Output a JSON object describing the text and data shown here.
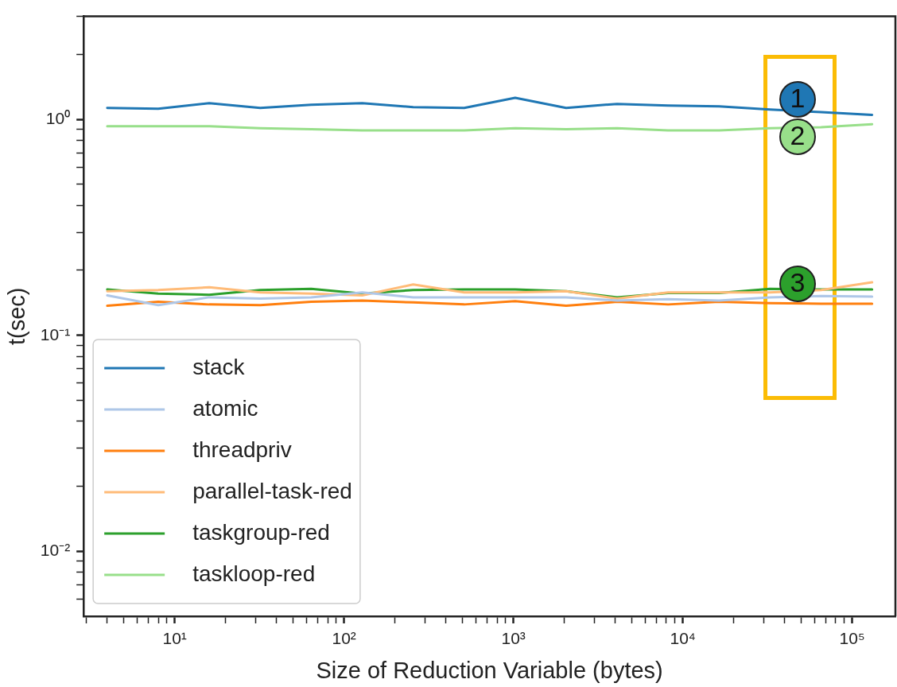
{
  "chart_data": {
    "type": "line",
    "xlabel": "Size of Reduction Variable (bytes)",
    "ylabel": "t(sec)",
    "log": "xy",
    "grid": false,
    "legend": "bottom left",
    "marker": "none",
    "line_style": "solid",
    "x": [
      4,
      8,
      16,
      32,
      64,
      128,
      256,
      512,
      1024,
      2048,
      4096,
      8192,
      16384,
      32768,
      65536,
      131072
    ],
    "xlim": [
      2.9,
      180000
    ],
    "ylim": [
      0.005,
      3
    ],
    "xticks": [
      {
        "value": 3,
        "label": null
      },
      {
        "value": 4,
        "label": null
      },
      {
        "value": 5,
        "label": null
      },
      {
        "value": 6,
        "label": null
      },
      {
        "value": 7,
        "label": null
      },
      {
        "value": 8,
        "label": null
      },
      {
        "value": 9,
        "label": null
      },
      {
        "value": 10,
        "label": "10¹"
      },
      {
        "value": 20,
        "label": null
      },
      {
        "value": 30,
        "label": null
      },
      {
        "value": 40,
        "label": null
      },
      {
        "value": 50,
        "label": null
      },
      {
        "value": 60,
        "label": null
      },
      {
        "value": 70,
        "label": null
      },
      {
        "value": 80,
        "label": null
      },
      {
        "value": 90,
        "label": null
      },
      {
        "value": 100,
        "label": "10²"
      },
      {
        "value": 200,
        "label": null
      },
      {
        "value": 300,
        "label": null
      },
      {
        "value": 400,
        "label": null
      },
      {
        "value": 500,
        "label": null
      },
      {
        "value": 600,
        "label": null
      },
      {
        "value": 700,
        "label": null
      },
      {
        "value": 800,
        "label": null
      },
      {
        "value": 900,
        "label": null
      },
      {
        "value": 1000,
        "label": "10³"
      },
      {
        "value": 2000,
        "label": null
      },
      {
        "value": 3000,
        "label": null
      },
      {
        "value": 4000,
        "label": null
      },
      {
        "value": 5000,
        "label": null
      },
      {
        "value": 6000,
        "label": null
      },
      {
        "value": 7000,
        "label": null
      },
      {
        "value": 8000,
        "label": null
      },
      {
        "value": 9000,
        "label": null
      },
      {
        "value": 10000,
        "label": "10⁴"
      },
      {
        "value": 20000,
        "label": null
      },
      {
        "value": 30000,
        "label": null
      },
      {
        "value": 40000,
        "label": null
      },
      {
        "value": 50000,
        "label": null
      },
      {
        "value": 60000,
        "label": null
      },
      {
        "value": 70000,
        "label": null
      },
      {
        "value": 80000,
        "label": null
      },
      {
        "value": 90000,
        "label": null
      },
      {
        "value": 100000,
        "label": "10⁵"
      }
    ],
    "yticks": [
      {
        "value": 0.006,
        "label": null
      },
      {
        "value": 0.007,
        "label": null
      },
      {
        "value": 0.008,
        "label": null
      },
      {
        "value": 0.009,
        "label": null
      },
      {
        "value": 0.01,
        "label": "10⁻²"
      },
      {
        "value": 0.02,
        "label": null
      },
      {
        "value": 0.03,
        "label": null
      },
      {
        "value": 0.04,
        "label": null
      },
      {
        "value": 0.05,
        "label": null
      },
      {
        "value": 0.06,
        "label": null
      },
      {
        "value": 0.07,
        "label": null
      },
      {
        "value": 0.08,
        "label": null
      },
      {
        "value": 0.09,
        "label": null
      },
      {
        "value": 0.1,
        "label": "10⁻¹"
      },
      {
        "value": 0.2,
        "label": null
      },
      {
        "value": 0.3,
        "label": null
      },
      {
        "value": 0.4,
        "label": null
      },
      {
        "value": 0.5,
        "label": null
      },
      {
        "value": 0.6,
        "label": null
      },
      {
        "value": 0.7,
        "label": null
      },
      {
        "value": 0.8,
        "label": null
      },
      {
        "value": 0.9,
        "label": null
      },
      {
        "value": 1,
        "label": "10⁰"
      },
      {
        "value": 2,
        "label": null
      },
      {
        "value": 3,
        "label": null
      }
    ],
    "series": [
      {
        "name": "stack",
        "color": "#1f77b4",
        "values": [
          1.13,
          1.12,
          1.19,
          1.13,
          1.17,
          1.19,
          1.14,
          1.13,
          1.26,
          1.13,
          1.18,
          1.16,
          1.15,
          1.11,
          1.08,
          1.05
        ]
      },
      {
        "name": "atomic",
        "color": "#aec7e8",
        "values": [
          0.153,
          0.138,
          0.15,
          0.148,
          0.15,
          0.158,
          0.15,
          0.15,
          0.15,
          0.15,
          0.145,
          0.147,
          0.145,
          0.15,
          0.152,
          0.151
        ]
      },
      {
        "name": "threadpriv",
        "color": "#ff7f0e",
        "values": [
          0.137,
          0.143,
          0.139,
          0.138,
          0.143,
          0.145,
          0.142,
          0.139,
          0.144,
          0.137,
          0.143,
          0.139,
          0.143,
          0.141,
          0.14,
          0.14
        ]
      },
      {
        "name": "parallel-task-red",
        "color": "#ffbb78",
        "values": [
          0.16,
          0.162,
          0.167,
          0.158,
          0.156,
          0.153,
          0.172,
          0.158,
          0.158,
          0.16,
          0.148,
          0.158,
          0.158,
          0.158,
          0.162,
          0.176
        ]
      },
      {
        "name": "taskgroup-red",
        "color": "#2ca02c",
        "values": [
          0.163,
          0.156,
          0.154,
          0.162,
          0.164,
          0.156,
          0.162,
          0.163,
          0.163,
          0.16,
          0.15,
          0.157,
          0.157,
          0.164,
          0.163,
          0.163
        ]
      },
      {
        "name": "taskloop-red",
        "color": "#98df8a",
        "values": [
          0.93,
          0.93,
          0.93,
          0.91,
          0.9,
          0.89,
          0.89,
          0.89,
          0.91,
          0.9,
          0.91,
          0.89,
          0.89,
          0.91,
          0.92,
          0.95
        ]
      }
    ],
    "annotations": [
      "1",
      "2",
      "3"
    ]
  }
}
